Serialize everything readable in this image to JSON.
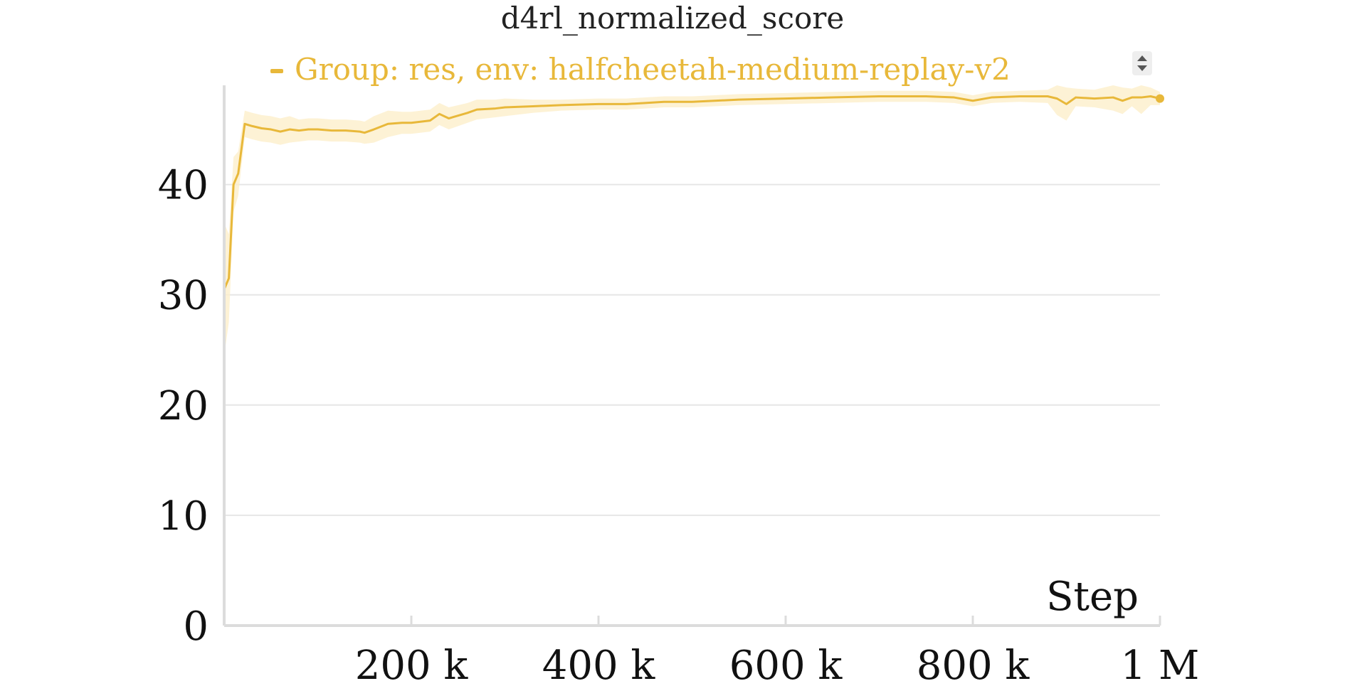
{
  "chart_data": {
    "type": "line",
    "title": "d4rl_normalized_score",
    "xlabel": "Step",
    "ylabel": "",
    "xlim": [
      0,
      1000000
    ],
    "ylim": [
      0,
      49
    ],
    "grid": true,
    "legend_position": "top",
    "x_ticks": [
      200000,
      400000,
      600000,
      800000,
      1000000
    ],
    "x_tick_labels": [
      "200 k",
      "400 k",
      "600 k",
      "800 k",
      "1 M"
    ],
    "y_ticks": [
      0,
      10,
      20,
      30,
      40
    ],
    "y_tick_labels": [
      "0",
      "10",
      "20",
      "30",
      "40"
    ],
    "series": [
      {
        "name": "Group: res, env: halfcheetah-medium-replay-v2",
        "color": "#E8B83A",
        "band_color": "#FCEFCB",
        "x": [
          0,
          5000,
          10000,
          15000,
          22000,
          30000,
          40000,
          50000,
          60000,
          70000,
          80000,
          90000,
          100000,
          115000,
          130000,
          145000,
          150000,
          160000,
          175000,
          190000,
          200000,
          220000,
          230000,
          240000,
          260000,
          270000,
          290000,
          300000,
          330000,
          360000,
          400000,
          430000,
          450000,
          470000,
          500000,
          550000,
          600000,
          650000,
          700000,
          750000,
          780000,
          800000,
          820000,
          850000,
          880000,
          890000,
          900000,
          910000,
          930000,
          950000,
          960000,
          970000,
          980000,
          990000,
          1000000
        ],
        "values": [
          30.5,
          31.5,
          40.0,
          41.0,
          45.5,
          45.3,
          45.1,
          45.0,
          44.8,
          45.0,
          44.9,
          45.0,
          45.0,
          44.9,
          44.9,
          44.8,
          44.7,
          45.0,
          45.5,
          45.6,
          45.6,
          45.8,
          46.4,
          46.0,
          46.5,
          46.8,
          46.9,
          47.0,
          47.1,
          47.2,
          47.3,
          47.3,
          47.4,
          47.5,
          47.5,
          47.7,
          47.8,
          47.9,
          48.0,
          48.0,
          47.9,
          47.6,
          47.9,
          48.0,
          48.0,
          47.8,
          47.3,
          47.9,
          47.8,
          47.9,
          47.6,
          47.9,
          47.9,
          48.0,
          47.8
        ],
        "band_width": [
          6.0,
          4.0,
          2.5,
          2.0,
          1.2,
          1.2,
          1.2,
          1.2,
          1.2,
          1.2,
          1.0,
          1.0,
          1.0,
          1.0,
          1.0,
          1.0,
          1.0,
          1.2,
          1.2,
          1.0,
          1.0,
          1.0,
          1.0,
          1.0,
          0.9,
          0.9,
          0.8,
          0.8,
          0.6,
          0.5,
          0.5,
          0.5,
          0.5,
          0.5,
          0.5,
          0.5,
          0.5,
          0.5,
          0.5,
          0.5,
          0.5,
          0.5,
          0.5,
          0.5,
          0.6,
          1.5,
          1.5,
          0.8,
          0.8,
          1.2,
          1.2,
          0.8,
          1.5,
          0.8,
          0.6
        ]
      }
    ]
  },
  "controls": {
    "legend_scroll_icon": "up-down-arrows-icon"
  }
}
